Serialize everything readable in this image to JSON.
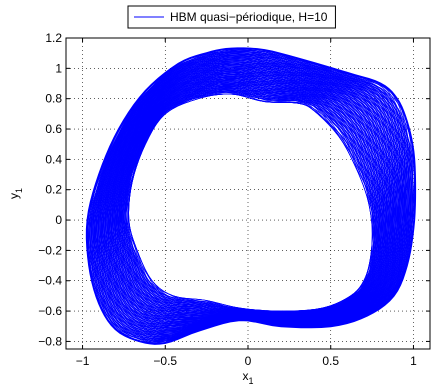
{
  "chart_data": {
    "type": "line",
    "title": "",
    "xlabel": "x",
    "xlabel_sub": "1",
    "ylabel": "y",
    "ylabel_sub": "1",
    "xlim": [
      -1.1,
      1.1
    ],
    "ylim": [
      -0.85,
      1.2
    ],
    "xticks": [
      -1,
      -0.5,
      0,
      0.5,
      1
    ],
    "xtick_labels": [
      "−1",
      "−0.5",
      "0",
      "0.5",
      "1"
    ],
    "yticks": [
      -0.8,
      -0.6,
      -0.4,
      -0.2,
      0,
      0.2,
      0.4,
      0.6,
      0.8,
      1,
      1.2
    ],
    "ytick_labels": [
      "−0.8",
      "−0.6",
      "−0.4",
      "−0.2",
      "0",
      "0.2",
      "0.4",
      "0.6",
      "0.8",
      "1",
      "1.2"
    ],
    "grid": true,
    "legend_position": "top",
    "series": [
      {
        "name": "HBM quasi−périodique, H=10",
        "color": "#0000ff",
        "closed": true,
        "outer_x": [
          -0.1,
          0.1,
          0.35,
          0.6,
          0.8,
          0.9,
          0.96,
          1.0,
          1.01,
          1.0,
          0.96,
          0.88,
          0.72,
          0.5,
          0.2,
          -0.05,
          -0.3,
          -0.5,
          -0.65,
          -0.8,
          -0.9,
          -0.96,
          -0.97,
          -0.9,
          -0.78,
          -0.62,
          -0.42,
          -0.25
        ],
        "outer_y": [
          1.13,
          1.12,
          1.05,
          0.97,
          0.9,
          0.8,
          0.65,
          0.45,
          0.2,
          -0.05,
          -0.3,
          -0.5,
          -0.63,
          -0.7,
          -0.7,
          -0.66,
          -0.73,
          -0.81,
          -0.8,
          -0.72,
          -0.55,
          -0.3,
          0.0,
          0.3,
          0.6,
          0.85,
          1.03,
          1.1
        ],
        "inner_x": [
          -0.1,
          0.1,
          0.3,
          0.4,
          0.55,
          0.65,
          0.72,
          0.75,
          0.74,
          0.7,
          0.62,
          0.45,
          0.2,
          -0.05,
          -0.25,
          -0.45,
          -0.58,
          -0.67,
          -0.72,
          -0.7,
          -0.62,
          -0.5,
          -0.3
        ],
        "inner_y": [
          0.83,
          0.78,
          0.77,
          0.72,
          0.55,
          0.35,
          0.15,
          -0.05,
          -0.25,
          -0.4,
          -0.5,
          -0.58,
          -0.6,
          -0.58,
          -0.53,
          -0.5,
          -0.4,
          -0.2,
          0.0,
          0.25,
          0.5,
          0.7,
          0.8
        ]
      }
    ]
  }
}
